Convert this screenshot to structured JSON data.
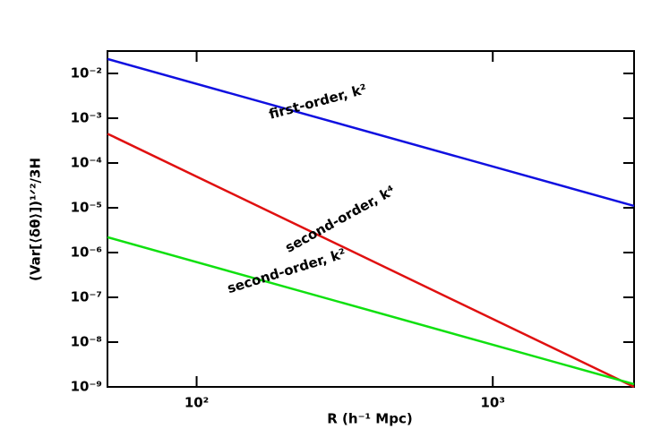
{
  "chart_data": {
    "type": "line",
    "xlabel": "R (h⁻¹ Mpc)",
    "ylabel": "(Var[⟨δθ⟩])¹ᐟ²/3H",
    "xscale": "log",
    "yscale": "log",
    "xlim": [
      50,
      3000
    ],
    "ylim": [
      1e-09,
      0.0316
    ],
    "xticks": [
      {
        "value": 100,
        "label": "10²"
      },
      {
        "value": 1000,
        "label": "10³"
      }
    ],
    "yticks": [
      {
        "value": 1e-09,
        "label": "10⁻⁹"
      },
      {
        "value": 1e-08,
        "label": "10⁻⁸"
      },
      {
        "value": 1e-07,
        "label": "10⁻⁷"
      },
      {
        "value": 1e-06,
        "label": "10⁻⁶"
      },
      {
        "value": 1e-05,
        "label": "10⁻⁵"
      },
      {
        "value": 0.0001,
        "label": "10⁻⁴"
      },
      {
        "value": 0.001,
        "label": "10⁻³"
      },
      {
        "value": 0.01,
        "label": "10⁻²"
      }
    ],
    "series": [
      {
        "name": "first-order, k²",
        "color": "#1010e0",
        "x": [
          50,
          3000
        ],
        "values": [
          0.021,
          1.1e-05
        ]
      },
      {
        "name": "second-order, k⁴",
        "color": "#e01010",
        "x": [
          50,
          3000
        ],
        "values": [
          0.00045,
          1e-09
        ]
      },
      {
        "name": "second-order, k²",
        "color": "#10e010",
        "x": [
          50,
          3000
        ],
        "values": [
          2.2e-06,
          1.15e-09
        ]
      }
    ]
  }
}
